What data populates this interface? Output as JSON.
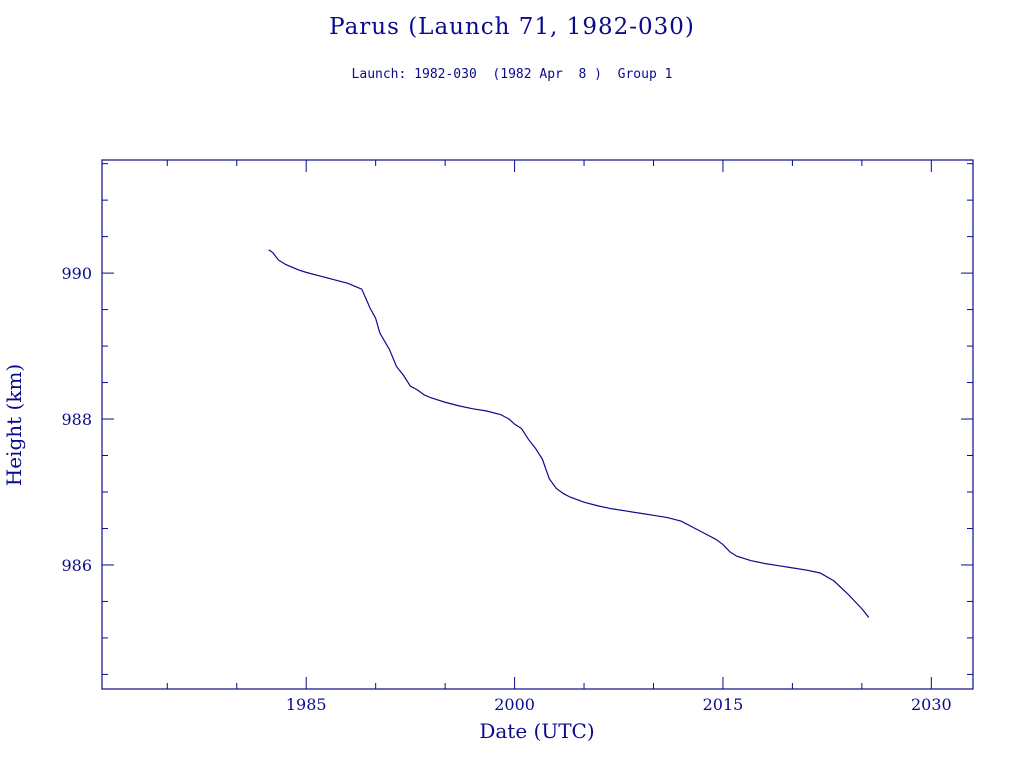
{
  "chart_data": {
    "type": "line",
    "title": "Parus (Launch 71, 1982-030)",
    "subtitle": "Launch: 1982-030  (1982 Apr  8 )  Group 1",
    "xlabel": "Date (UTC)",
    "ylabel": "Height (km)",
    "xlim": [
      1970.3,
      2033.0
    ],
    "ylim": [
      984.3,
      991.55
    ],
    "x_ticks": [
      1985,
      2000,
      2015,
      2030
    ],
    "x_tick_labels": [
      "1985",
      "2000",
      "2015",
      "2030"
    ],
    "y_ticks": [
      986,
      988,
      990
    ],
    "y_tick_labels": [
      "986",
      "988",
      "990"
    ],
    "grid": false,
    "color": "#0a0a8c",
    "series": [
      {
        "x": [
          1982.3,
          1982.6,
          1983.0,
          1983.5,
          1984.0,
          1984.5,
          1985.0,
          1986.0,
          1987.0,
          1988.0,
          1989.0,
          1989.6,
          1990.0,
          1990.3,
          1990.6,
          1991.0,
          1991.5,
          1992.0,
          1992.5,
          1993.0,
          1993.5,
          1994.0,
          1994.5,
          1995.0,
          1996.0,
          1997.0,
          1998.0,
          1999.0,
          1999.6,
          2000.0,
          2000.5,
          2001.0,
          2001.5,
          2002.0,
          2002.5,
          2003.0,
          2003.5,
          2004.0,
          2005.0,
          2006.0,
          2007.0,
          2008.0,
          2009.0,
          2010.0,
          2011.0,
          2012.0,
          2013.0,
          2014.0,
          2014.5,
          2015.0,
          2015.5,
          2016.0,
          2017.0,
          2018.0,
          2019.0,
          2020.0,
          2021.0,
          2022.0,
          2023.0,
          2024.0,
          2025.0,
          2025.5
        ],
        "y": [
          990.32,
          990.28,
          990.18,
          990.12,
          990.08,
          990.04,
          990.01,
          989.96,
          989.91,
          989.86,
          989.78,
          989.52,
          989.38,
          989.18,
          989.08,
          988.95,
          988.72,
          988.6,
          988.45,
          988.4,
          988.33,
          988.29,
          988.26,
          988.23,
          988.18,
          988.14,
          988.11,
          988.06,
          988.0,
          987.93,
          987.87,
          987.72,
          987.6,
          987.45,
          987.18,
          987.05,
          986.98,
          986.93,
          986.86,
          986.81,
          986.77,
          986.74,
          986.71,
          986.68,
          986.65,
          986.6,
          986.5,
          986.4,
          986.35,
          986.28,
          986.18,
          986.12,
          986.06,
          986.02,
          985.99,
          985.96,
          985.93,
          985.89,
          985.78,
          985.6,
          985.4,
          985.28
        ]
      }
    ]
  }
}
